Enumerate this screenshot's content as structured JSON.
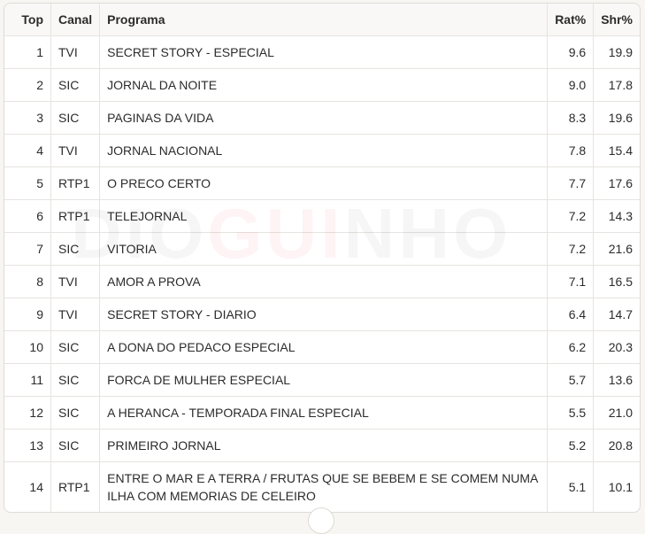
{
  "headers": {
    "top": "Top",
    "canal": "Canal",
    "programa": "Programa",
    "rat": "Rat%",
    "shr": "Shr%"
  },
  "rows": [
    {
      "top": "1",
      "canal": "TVI",
      "programa": "SECRET STORY - ESPECIAL",
      "rat": "9.6",
      "shr": "19.9"
    },
    {
      "top": "2",
      "canal": "SIC",
      "programa": "JORNAL DA NOITE",
      "rat": "9.0",
      "shr": "17.8"
    },
    {
      "top": "3",
      "canal": "SIC",
      "programa": "PAGINAS DA VIDA",
      "rat": "8.3",
      "shr": "19.6"
    },
    {
      "top": "4",
      "canal": "TVI",
      "programa": "JORNAL NACIONAL",
      "rat": "7.8",
      "shr": "15.4"
    },
    {
      "top": "5",
      "canal": "RTP1",
      "programa": "O PRECO CERTO",
      "rat": "7.7",
      "shr": "17.6"
    },
    {
      "top": "6",
      "canal": "RTP1",
      "programa": "TELEJORNAL",
      "rat": "7.2",
      "shr": "14.3"
    },
    {
      "top": "7",
      "canal": "SIC",
      "programa": "VITORIA",
      "rat": "7.2",
      "shr": "21.6"
    },
    {
      "top": "8",
      "canal": "TVI",
      "programa": "AMOR A PROVA",
      "rat": "7.1",
      "shr": "16.5"
    },
    {
      "top": "9",
      "canal": "TVI",
      "programa": "SECRET STORY - DIARIO",
      "rat": "6.4",
      "shr": "14.7"
    },
    {
      "top": "10",
      "canal": "SIC",
      "programa": "A DONA DO PEDACO ESPECIAL",
      "rat": "6.2",
      "shr": "20.3"
    },
    {
      "top": "11",
      "canal": "SIC",
      "programa": "FORCA DE MULHER ESPECIAL",
      "rat": "5.7",
      "shr": "13.6"
    },
    {
      "top": "12",
      "canal": "SIC",
      "programa": "A HERANCA - TEMPORADA FINAL ESPECIAL",
      "rat": "5.5",
      "shr": "21.0"
    },
    {
      "top": "13",
      "canal": "SIC",
      "programa": "PRIMEIRO JORNAL",
      "rat": "5.2",
      "shr": "20.8"
    },
    {
      "top": "14",
      "canal": "RTP1",
      "programa": "ENTRE O MAR E A TERRA / FRUTAS QUE SE BEBEM E SE COMEM NUMA ILHA COM MEMORIAS DE CELEIRO",
      "rat": "5.1",
      "shr": "10.1"
    }
  ],
  "watermark": {
    "pre": "DIO",
    "mid": "GUI",
    "post": "NHO"
  }
}
